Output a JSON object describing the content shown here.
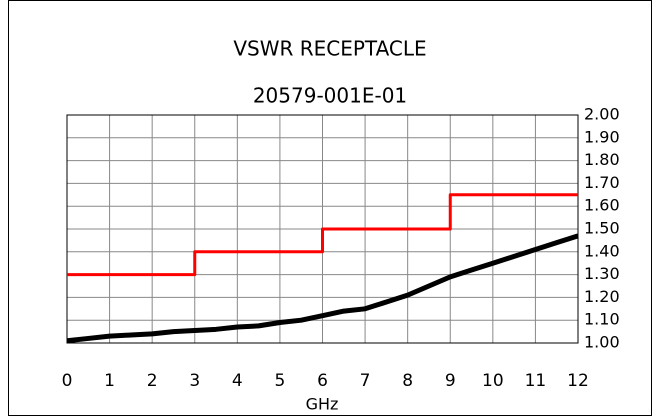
{
  "chart_data": {
    "type": "line",
    "title": "VSWR RECEPTACLE",
    "subtitle": "20579-001E-01",
    "x_label": "GHz",
    "xlim": [
      0,
      12
    ],
    "xticks": [
      0,
      1,
      2,
      3,
      4,
      5,
      6,
      7,
      8,
      9,
      10,
      11,
      12
    ],
    "ylim": [
      1,
      2
    ],
    "yticks": [
      {
        "value": 1,
        "label": "1.00"
      },
      {
        "value": 1.1,
        "label": "1.10"
      },
      {
        "value": 1.2,
        "label": "1.20"
      },
      {
        "value": 1.3,
        "label": "1.30"
      },
      {
        "value": 1.4,
        "label": "1.40"
      },
      {
        "value": 1.5,
        "label": "1.50"
      },
      {
        "value": 1.6,
        "label": "1.60"
      },
      {
        "value": 1.7,
        "label": "1.70"
      },
      {
        "value": 1.8,
        "label": "1.80"
      },
      {
        "value": 1.9,
        "label": "1.90"
      },
      {
        "value": 2,
        "label": "2.00"
      }
    ],
    "grid": true,
    "series": [
      {
        "color": "#ff0000",
        "x": [
          0,
          3,
          3,
          6,
          6,
          9,
          9,
          12
        ],
        "values": [
          1.3,
          1.3,
          1.4,
          1.4,
          1.5,
          1.5,
          1.65,
          1.65
        ]
      },
      {
        "color": "#000000",
        "x": [
          0,
          0.5,
          1,
          1.5,
          2,
          2.5,
          3,
          3.5,
          4,
          4.5,
          5,
          5.5,
          6,
          6.5,
          7,
          7.5,
          8,
          8.5,
          9,
          9.5,
          10,
          10.5,
          11,
          11.5,
          12
        ],
        "values": [
          1.01,
          1.02,
          1.03,
          1.035,
          1.04,
          1.05,
          1.055,
          1.06,
          1.07,
          1.075,
          1.09,
          1.1,
          1.12,
          1.14,
          1.15,
          1.18,
          1.21,
          1.25,
          1.29,
          1.32,
          1.35,
          1.38,
          1.41,
          1.44,
          1.47
        ]
      }
    ]
  }
}
